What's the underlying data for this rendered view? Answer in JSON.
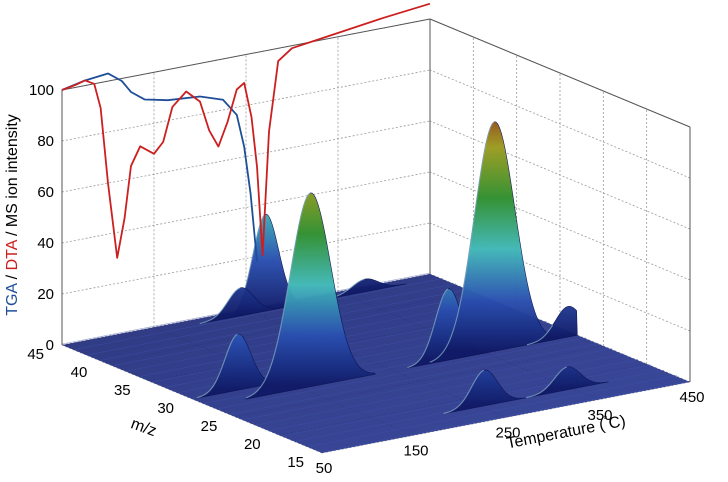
{
  "chart_data": {
    "type": "3d-surface",
    "axes": {
      "x": {
        "label_prefix": "Temperature (",
        "label_unit": "°C",
        "label_suffix": ")",
        "ticks": [
          "50",
          "150",
          "250",
          "350",
          "450"
        ],
        "range": [
          50,
          450
        ]
      },
      "y": {
        "label": "m/z",
        "ticks": [
          "15",
          "20",
          "25",
          "30",
          "35",
          "40",
          "45"
        ],
        "range": [
          15,
          45
        ]
      },
      "z": {
        "label_parts": [
          {
            "text": "TGA",
            "color": "#1f4e99"
          },
          {
            "text": " / ",
            "color": "#000000"
          },
          {
            "text": "DTA",
            "color": "#cc1f1f"
          },
          {
            "text": " / MS ion intensity",
            "color": "#000000"
          }
        ],
        "ticks": [
          "0",
          "20",
          "40",
          "60",
          "80",
          "100"
        ],
        "range": [
          0,
          100
        ]
      }
    },
    "grid": true,
    "series": [
      {
        "kind": "curve",
        "color": "#1f4e99",
        "mz": 45,
        "x": [
          50,
          75,
          100,
          115,
          125,
          140,
          165,
          200,
          225,
          240,
          248,
          255,
          262
        ],
        "z": [
          100,
          102,
          103,
          99,
          94,
          90,
          88,
          87,
          84,
          77,
          64,
          45,
          18
        ]
      },
      {
        "kind": "curve",
        "color": "#cc1f1f",
        "mz": 45,
        "x": [
          50,
          65,
          75,
          85,
          92,
          100,
          110,
          118,
          125,
          135,
          150,
          160,
          170,
          185,
          200,
          210,
          220,
          230,
          240,
          248,
          256,
          262,
          268,
          275,
          285,
          300,
          340,
          400,
          450
        ],
        "z": [
          100,
          101,
          102,
          100,
          90,
          60,
          30,
          45,
          65,
          72,
          68,
          72,
          85,
          90,
          85,
          73,
          66,
          75,
          87,
          89,
          75,
          55,
          20,
          68,
          95,
          99,
          101,
          104,
          106
        ]
      },
      {
        "kind": "ms-peaks",
        "colormap": [
          "#101a66",
          "#2a4fb0",
          "#3fb7b7",
          "#2f8f2f",
          "#9b9b1f",
          "#8b1010"
        ],
        "peaks": [
          {
            "mz": 18,
            "x_center": 255,
            "height": 14
          },
          {
            "mz": 18,
            "x_center": 345,
            "height": 9
          },
          {
            "mz": 28,
            "x_center": 160,
            "height": 76
          },
          {
            "mz": 28,
            "x_center": 310,
            "height": 28
          },
          {
            "mz": 28,
            "x_center": 360,
            "height": 90
          },
          {
            "mz": 28,
            "x_center": 440,
            "height": 12
          },
          {
            "mz": 30,
            "x_center": 100,
            "height": 22
          },
          {
            "mz": 44,
            "x_center": 262,
            "height": 38
          },
          {
            "mz": 44,
            "x_center": 235,
            "height": 11
          },
          {
            "mz": 44,
            "x_center": 370,
            "height": 5
          }
        ]
      }
    ]
  }
}
